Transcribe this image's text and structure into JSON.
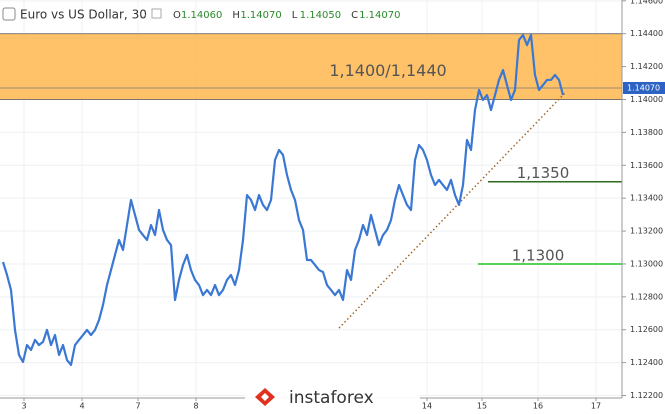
{
  "chart_data": {
    "type": "line",
    "title": "Euro vs US Dollar, 30",
    "ohlc": [
      {
        "key": "O",
        "text": "1.14060"
      },
      {
        "key": "H",
        "text": "1.14070"
      },
      {
        "key": "L",
        "text": "1.14050"
      },
      {
        "key": "C",
        "text": "1.14070"
      }
    ],
    "watermark": "instaforex",
    "x": [
      0,
      1,
      2,
      3,
      4,
      5,
      6,
      7,
      8,
      9,
      10,
      11,
      12,
      13,
      14,
      15,
      16,
      17,
      18,
      19,
      20,
      21,
      22,
      23,
      24,
      25,
      26,
      27,
      28,
      29,
      30,
      31,
      32,
      33,
      34,
      35,
      36,
      37,
      38,
      39,
      40,
      41,
      42,
      43,
      44,
      45,
      46,
      47,
      48,
      49,
      50,
      51,
      52,
      53,
      54,
      55,
      56,
      57,
      58,
      59,
      60,
      61,
      62,
      63,
      64,
      65,
      66,
      67,
      68,
      69,
      70,
      71,
      72,
      73,
      74,
      75,
      76,
      77,
      78,
      79,
      80,
      81,
      82,
      83,
      84,
      85,
      86,
      87,
      88,
      89,
      90,
      91,
      92,
      93,
      94,
      95,
      96,
      97,
      98,
      99,
      100,
      101,
      102,
      103,
      104,
      105,
      106,
      107,
      108,
      109,
      110,
      111,
      112,
      113,
      114,
      115,
      116,
      117,
      118,
      119,
      120,
      121,
      122,
      123,
      124,
      125,
      126,
      127,
      128,
      129,
      130,
      131,
      132,
      133,
      134,
      135,
      136,
      137,
      138,
      139,
      140
    ],
    "series": [
      {
        "name": "EURUSD",
        "color": "#3a78d4",
        "values": [
          1.13012,
          1.12933,
          1.12842,
          1.12599,
          1.12447,
          1.12404,
          1.12507,
          1.12477,
          1.12538,
          1.12507,
          1.12526,
          1.12599,
          1.12507,
          1.12568,
          1.12447,
          1.12507,
          1.12416,
          1.12386,
          1.12507,
          1.12538,
          1.12568,
          1.12599,
          1.12568,
          1.12599,
          1.12659,
          1.12751,
          1.12872,
          1.12963,
          1.13055,
          1.13146,
          1.13085,
          1.13237,
          1.13389,
          1.13298,
          1.13207,
          1.13176,
          1.13146,
          1.13237,
          1.13176,
          1.13328,
          1.13207,
          1.13146,
          1.13115,
          1.12781,
          1.12903,
          1.12994,
          1.13055,
          1.12963,
          1.12903,
          1.12872,
          1.12811,
          1.12842,
          1.12811,
          1.12872,
          1.12811,
          1.12842,
          1.12903,
          1.12933,
          1.12872,
          1.12963,
          1.13146,
          1.13419,
          1.13389,
          1.13328,
          1.13419,
          1.13359,
          1.13328,
          1.13389,
          1.13632,
          1.13693,
          1.13663,
          1.13541,
          1.1345,
          1.13389,
          1.13267,
          1.13207,
          1.13024,
          1.13024,
          1.12994,
          1.12963,
          1.12951,
          1.12872,
          1.12842,
          1.12811,
          1.12842,
          1.12781,
          1.12963,
          1.12903,
          1.13085,
          1.13146,
          1.13237,
          1.13176,
          1.13298,
          1.13207,
          1.13115,
          1.13176,
          1.13207,
          1.13267,
          1.13389,
          1.1348,
          1.13419,
          1.13359,
          1.13328,
          1.13632,
          1.13723,
          1.13693,
          1.13632,
          1.13541,
          1.1348,
          1.13511,
          1.1348,
          1.1345,
          1.13511,
          1.13419,
          1.13359,
          1.1348,
          1.13754,
          1.13693,
          1.13936,
          1.14058,
          1.13997,
          1.14027,
          1.13936,
          1.14027,
          1.14119,
          1.14179,
          1.14088,
          1.13997,
          1.14058,
          1.14362,
          1.14392,
          1.14331,
          1.14392,
          1.14149,
          1.14058,
          1.14088,
          1.14119,
          1.14119,
          1.14149,
          1.14119,
          1.14027
        ]
      }
    ],
    "xlim": [
      -0.75,
      154.75
    ],
    "xticks": [
      {
        "value": 5.25,
        "label": "3"
      },
      {
        "value": 19.75,
        "label": "4"
      },
      {
        "value": 33.75,
        "label": "7"
      },
      {
        "value": 48.25,
        "label": "8"
      },
      {
        "value": 106,
        "label": "14"
      },
      {
        "value": 119.75,
        "label": "15"
      },
      {
        "value": 133.75,
        "label": "16"
      },
      {
        "value": 148.25,
        "label": "17"
      }
    ],
    "ylim": [
      1.12185,
      1.14605
    ],
    "yticks": [
      {
        "value": 1.122,
        "label": "1.12200"
      },
      {
        "value": 1.124,
        "label": "1.12400"
      },
      {
        "value": 1.126,
        "label": "1.12600"
      },
      {
        "value": 1.128,
        "label": "1.12800"
      },
      {
        "value": 1.13,
        "label": "1.13000"
      },
      {
        "value": 1.132,
        "label": "1.13200"
      },
      {
        "value": 1.134,
        "label": "1.13400"
      },
      {
        "value": 1.136,
        "label": "1.13600"
      },
      {
        "value": 1.138,
        "label": "1.13800"
      },
      {
        "value": 1.14,
        "label": "1.14000"
      },
      {
        "value": 1.142,
        "label": "1.14200"
      },
      {
        "value": 1.144,
        "label": "1.14400"
      },
      {
        "value": 1.146,
        "label": "1.14600"
      }
    ],
    "grid": true,
    "zone": {
      "from": 1.14,
      "to": 1.144,
      "label": "1,1400/1,1440",
      "color": "#ffb74d"
    },
    "levels": [
      {
        "value": 1.135,
        "label": "1,1350",
        "color": "#2e6b1f",
        "start": 121.25
      },
      {
        "value": 1.13,
        "label": "1,1300",
        "color": "#22c422",
        "start": 118.75
      }
    ],
    "trendline": {
      "start": [
        84,
        1.1261
      ],
      "end": [
        140.5,
        1.1404
      ],
      "color": "#a0672a"
    },
    "last_price": {
      "value": 1.1407,
      "label": "1.14070",
      "color": "#2b62c4"
    }
  }
}
